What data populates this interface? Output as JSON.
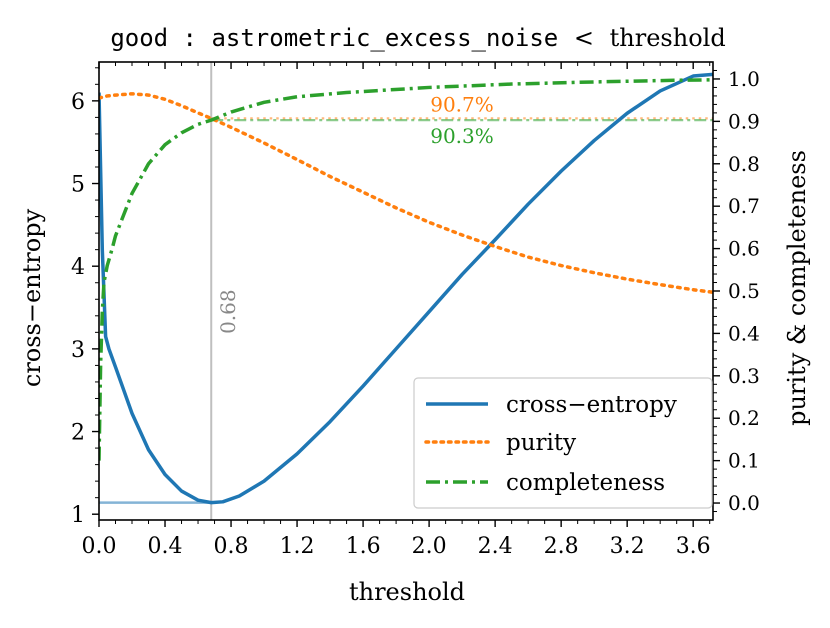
{
  "chart_data": {
    "type": "line",
    "title": {
      "code": "good : astrometric_excess_noise",
      "operator": "<",
      "text": "threshold"
    },
    "xlabel": "threshold",
    "ylabel_left": "cross−entropy",
    "ylabel_right": "purity & completeness",
    "xlim": [
      0.0,
      3.72
    ],
    "ylim_left": [
      0.93,
      6.47
    ],
    "ylim_right": [
      -0.04,
      1.04
    ],
    "x_ticks": [
      0.0,
      0.4,
      0.8,
      1.2,
      1.6,
      2.0,
      2.4,
      2.8,
      3.2,
      3.6
    ],
    "x_tick_labels": [
      "0.0",
      "0.4",
      "0.8",
      "1.2",
      "1.6",
      "2.0",
      "2.4",
      "2.8",
      "3.2",
      "3.6"
    ],
    "y_left_ticks": [
      1,
      2,
      3,
      4,
      5,
      6
    ],
    "y_left_tick_labels": [
      "1",
      "2",
      "3",
      "4",
      "5",
      "6"
    ],
    "y_right_ticks": [
      0.0,
      0.1,
      0.2,
      0.3,
      0.4,
      0.5,
      0.6,
      0.7,
      0.8,
      0.9,
      1.0
    ],
    "y_right_tick_labels": [
      "0.0",
      "0.1",
      "0.2",
      "0.3",
      "0.4",
      "0.5",
      "0.6",
      "0.7",
      "0.8",
      "0.9",
      "1.0"
    ],
    "series": [
      {
        "name": "cross−entropy",
        "axis": "left",
        "color": "#1f77b4",
        "style": "solid",
        "x": [
          0.0,
          0.02,
          0.04,
          0.06,
          0.1,
          0.15,
          0.2,
          0.3,
          0.4,
          0.5,
          0.6,
          0.68,
          0.75,
          0.85,
          1.0,
          1.2,
          1.4,
          1.6,
          1.8,
          2.0,
          2.2,
          2.4,
          2.6,
          2.8,
          3.0,
          3.2,
          3.4,
          3.6,
          3.72
        ],
        "y": [
          6.1,
          4.2,
          3.15,
          3.0,
          2.78,
          2.5,
          2.22,
          1.78,
          1.48,
          1.28,
          1.17,
          1.14,
          1.15,
          1.22,
          1.4,
          1.73,
          2.12,
          2.55,
          3.0,
          3.45,
          3.9,
          4.32,
          4.75,
          5.15,
          5.52,
          5.85,
          6.12,
          6.3,
          6.32
        ]
      },
      {
        "name": "purity",
        "axis": "right",
        "color": "#ff7f0e",
        "style": "dotted",
        "x": [
          0.0,
          0.05,
          0.1,
          0.2,
          0.3,
          0.4,
          0.5,
          0.6,
          0.68,
          0.8,
          1.0,
          1.2,
          1.4,
          1.6,
          1.8,
          2.0,
          2.2,
          2.4,
          2.6,
          2.8,
          3.0,
          3.2,
          3.4,
          3.6,
          3.72
        ],
        "y": [
          0.955,
          0.96,
          0.962,
          0.965,
          0.962,
          0.952,
          0.937,
          0.92,
          0.907,
          0.886,
          0.849,
          0.81,
          0.77,
          0.733,
          0.696,
          0.662,
          0.632,
          0.605,
          0.58,
          0.56,
          0.543,
          0.528,
          0.515,
          0.503,
          0.497
        ]
      },
      {
        "name": "completeness",
        "axis": "right",
        "color": "#2ca02c",
        "style": "dashdot",
        "x": [
          0.0,
          0.01,
          0.02,
          0.03,
          0.05,
          0.08,
          0.1,
          0.15,
          0.2,
          0.3,
          0.4,
          0.5,
          0.6,
          0.68,
          0.8,
          1.0,
          1.2,
          1.5,
          2.0,
          2.5,
          3.0,
          3.5,
          3.72
        ],
        "y": [
          0.1,
          0.33,
          0.45,
          0.52,
          0.56,
          0.6,
          0.63,
          0.68,
          0.73,
          0.8,
          0.845,
          0.873,
          0.893,
          0.903,
          0.922,
          0.945,
          0.958,
          0.968,
          0.98,
          0.988,
          0.993,
          0.997,
          0.998
        ]
      }
    ],
    "threshold_marker": {
      "x": 0.68,
      "label": "0.68",
      "min_cross_entropy": 1.14
    },
    "annotations": [
      {
        "text": "90.7%",
        "value": 0.907,
        "color": "#ff7f0e"
      },
      {
        "text": "90.3%",
        "value": 0.903,
        "color": "#2ca02c"
      }
    ],
    "legend": {
      "position": "lower-right",
      "entries": [
        "cross−entropy",
        "purity",
        "completeness"
      ]
    }
  }
}
